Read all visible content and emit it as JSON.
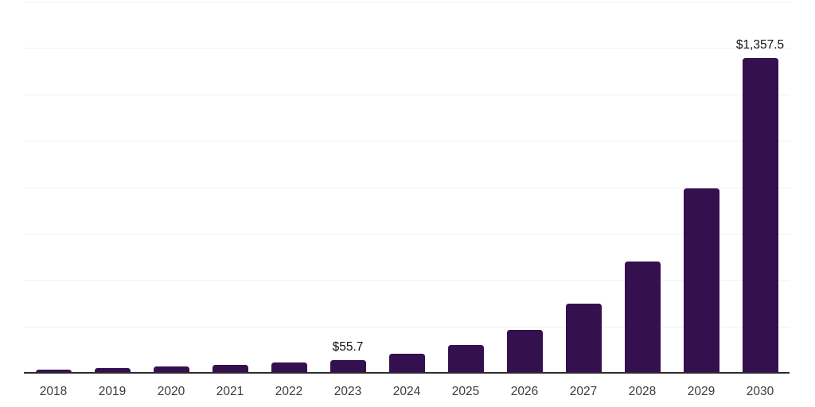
{
  "chart_data": {
    "type": "bar",
    "title": "",
    "xlabel": "",
    "ylabel": "",
    "categories": [
      "2018",
      "2019",
      "2020",
      "2021",
      "2022",
      "2023",
      "2024",
      "2025",
      "2026",
      "2027",
      "2028",
      "2029",
      "2030"
    ],
    "values": [
      15.2,
      19.4,
      26.0,
      33.8,
      44.9,
      55.7,
      82.3,
      120.2,
      186.1,
      299.4,
      478.0,
      795.8,
      1357.5
    ],
    "value_labels": {
      "2023": "$55.7",
      "2030": "$1,357.5"
    },
    "ylim": [
      0,
      1600
    ],
    "gridline_interval": 200,
    "grid": "horizontal",
    "y_axis_tick_labels_visible": false,
    "legend": "none",
    "colors": {
      "bar": "#35104F",
      "axis": "#2B2B2B",
      "gridline": "#F1F1F1",
      "tick_label": "#3C3C3C",
      "value_label": "#111111",
      "background": "#FFFFFF"
    }
  }
}
